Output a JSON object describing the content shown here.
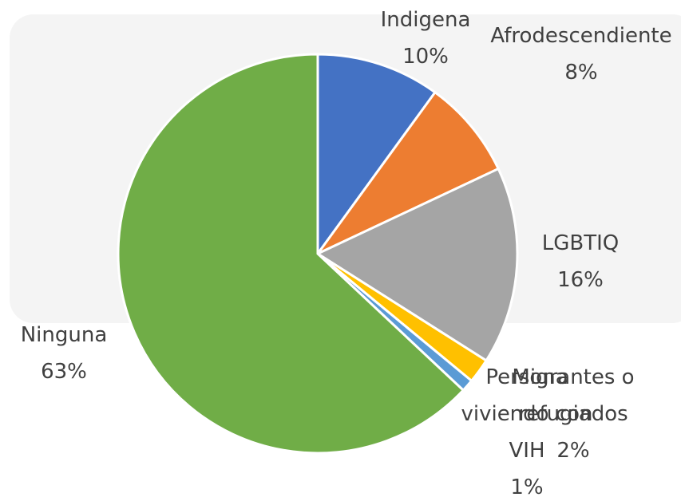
{
  "chart_data": {
    "type": "pie",
    "categories": [
      "Indigena",
      "Afrodescendiente",
      "LGBTIQ",
      "Migrantes o refugiados",
      "Persona viviendo con VIH",
      "Ninguna"
    ],
    "values": [
      10,
      8,
      16,
      2,
      1,
      63
    ],
    "value_labels": [
      "10%",
      "8%",
      "16%",
      "2%",
      "1%",
      "63%"
    ],
    "colors": [
      "#4472c4",
      "#ed7d31",
      "#a5a5a5",
      "#ffc000",
      "#5b9bd5",
      "#70ad47"
    ]
  }
}
